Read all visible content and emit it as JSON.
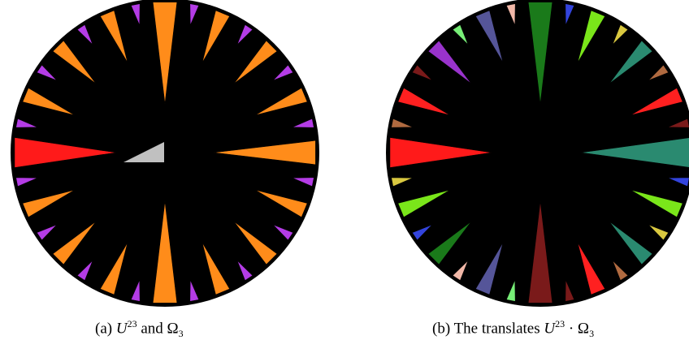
{
  "figures": [
    {
      "label": "(a)",
      "parts": [
        "U",
        "23",
        "and Ω",
        "3"
      ]
    },
    {
      "label": "(b)",
      "parts": [
        "The translates",
        "U",
        "23",
        "· Ω",
        "3"
      ]
    }
  ]
}
